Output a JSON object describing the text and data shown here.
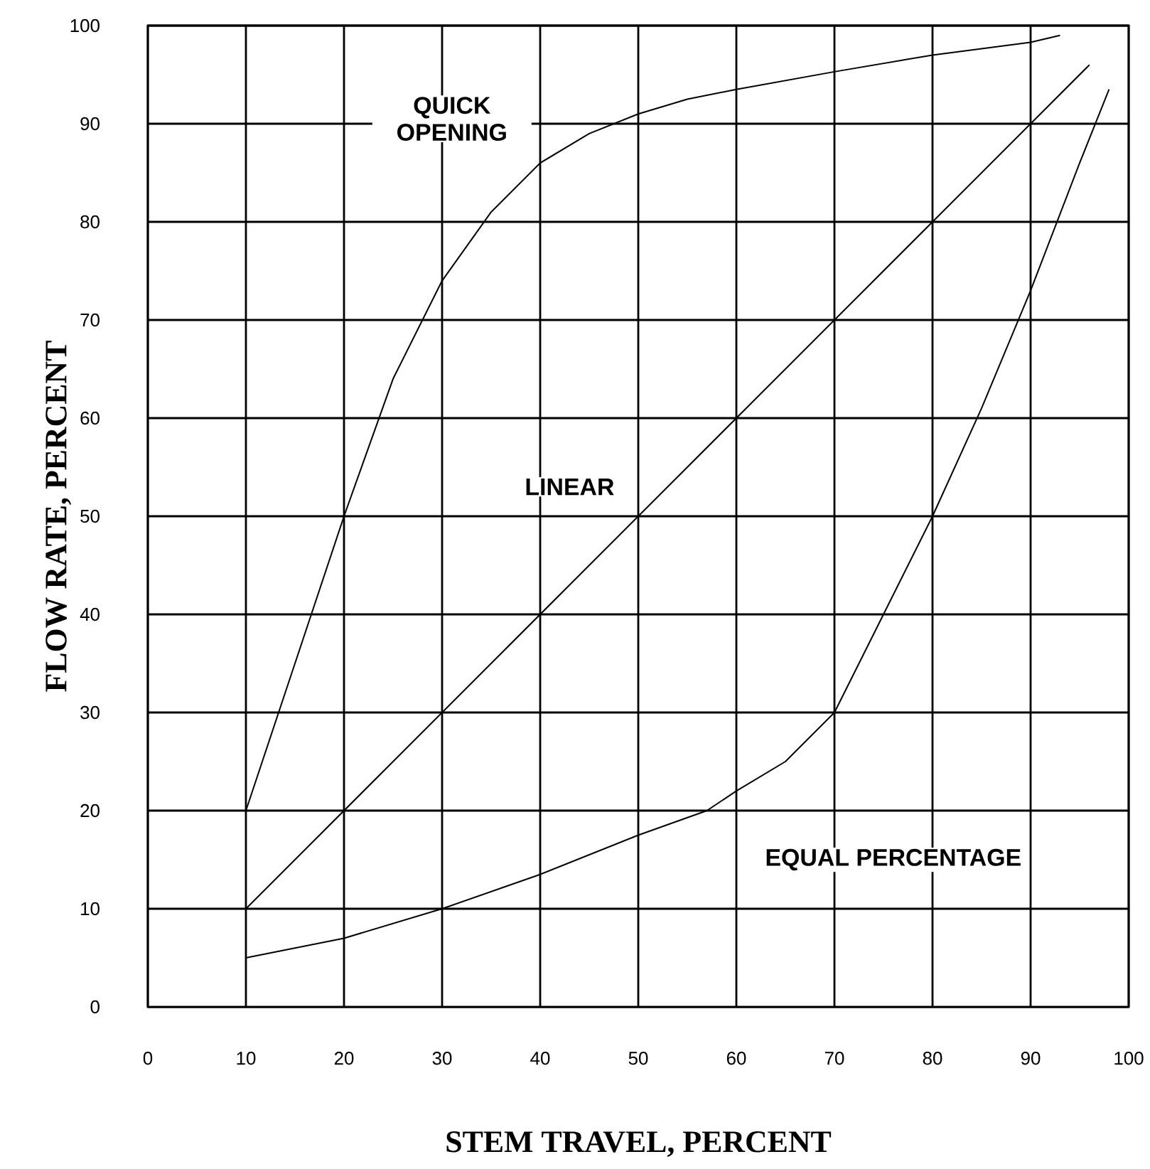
{
  "chart_data": {
    "type": "line",
    "xlabel": "STEM TRAVEL, PERCENT",
    "ylabel": "FLOW RATE, PERCENT",
    "series": [
      {
        "name": "QUICK OPENING",
        "color": "#000000",
        "x": [
          10,
          15,
          20,
          25,
          30,
          35,
          40,
          45,
          50,
          55,
          60,
          70,
          80,
          90,
          93
        ],
        "values": [
          20,
          35,
          50,
          64,
          74,
          81,
          86,
          89,
          91,
          92.5,
          93.5,
          95.3,
          97,
          98.3,
          99
        ]
      },
      {
        "name": "LINEAR",
        "color": "#000000",
        "x": [
          10,
          96
        ],
        "values": [
          10,
          96
        ]
      },
      {
        "name": "EQUAL PERCENTAGE",
        "color": "#000000",
        "x": [
          10,
          15,
          20,
          30,
          40,
          50,
          57,
          60,
          65,
          70,
          73,
          75,
          80,
          85,
          90,
          95,
          98
        ],
        "values": [
          5,
          6,
          7,
          10,
          13.5,
          17.5,
          20,
          22,
          25,
          30,
          36,
          40,
          50,
          61,
          73,
          86,
          93.5
        ]
      }
    ],
    "xlim": [
      0,
      100
    ],
    "ylim": [
      0,
      100
    ],
    "xticks": [
      0,
      10,
      20,
      30,
      40,
      50,
      60,
      70,
      80,
      90,
      100
    ],
    "yticks": [
      0,
      10,
      20,
      30,
      40,
      50,
      60,
      70,
      80,
      90,
      100
    ],
    "grid": true,
    "marker": "none",
    "line_style": "solid"
  }
}
